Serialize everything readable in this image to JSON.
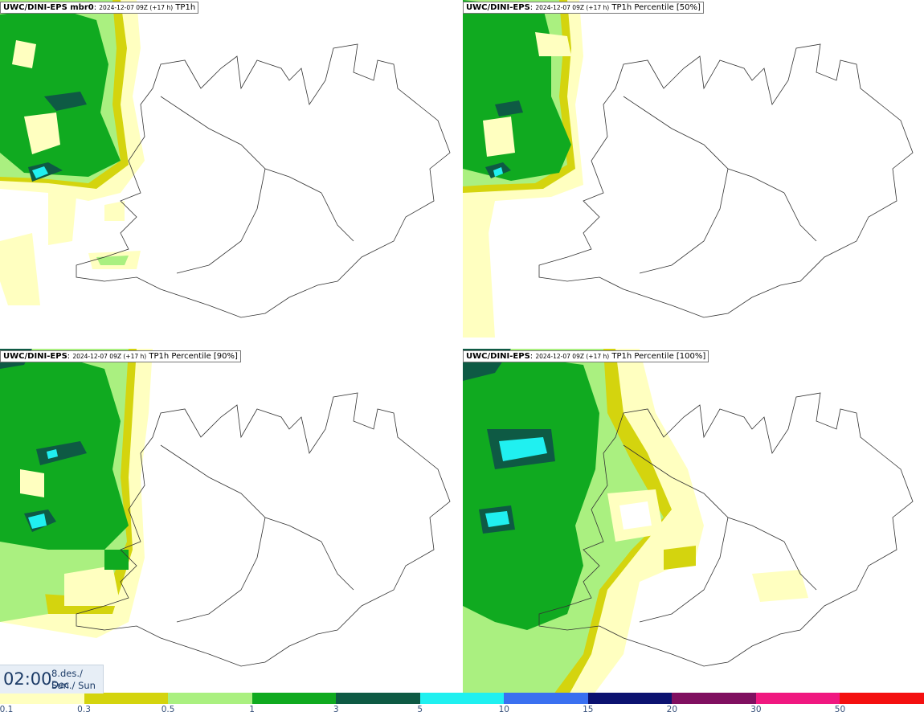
{
  "panels": [
    {
      "model": "UWC/DINI-EPS mbr0",
      "run": "2024-12-07 09Z (+17 h)",
      "field": "TP1h"
    },
    {
      "model": "UWC/DINI-EPS",
      "run": "2024-12-07 09Z (+17 h)",
      "field": "TP1h Percentile [50%]"
    },
    {
      "model": "UWC/DINI-EPS",
      "run": "2024-12-07 09Z (+17 h)",
      "field": "TP1h Percentile [90%]"
    },
    {
      "model": "UWC/DINI-EPS",
      "run": "2024-12-07 09Z (+17 h)",
      "field": "TP1h Percentile [100%]"
    }
  ],
  "valid_time": {
    "time": "02:00",
    "date_line1": "8.des./ Dec",
    "date_line2": "Sun./ Sun"
  },
  "colorbar": {
    "colors": [
      "#ffffc0",
      "#d4d40e",
      "#aaf080",
      "#10aa20",
      "#0e5a44",
      "#20f0f0",
      "#3a70f0",
      "#0c1270",
      "#801060",
      "#f01880",
      "#f41010"
    ],
    "labels": [
      "0.1",
      "0.3",
      "0.5",
      "1",
      "3",
      "5",
      "10",
      "15",
      "20",
      "30",
      "50"
    ]
  }
}
